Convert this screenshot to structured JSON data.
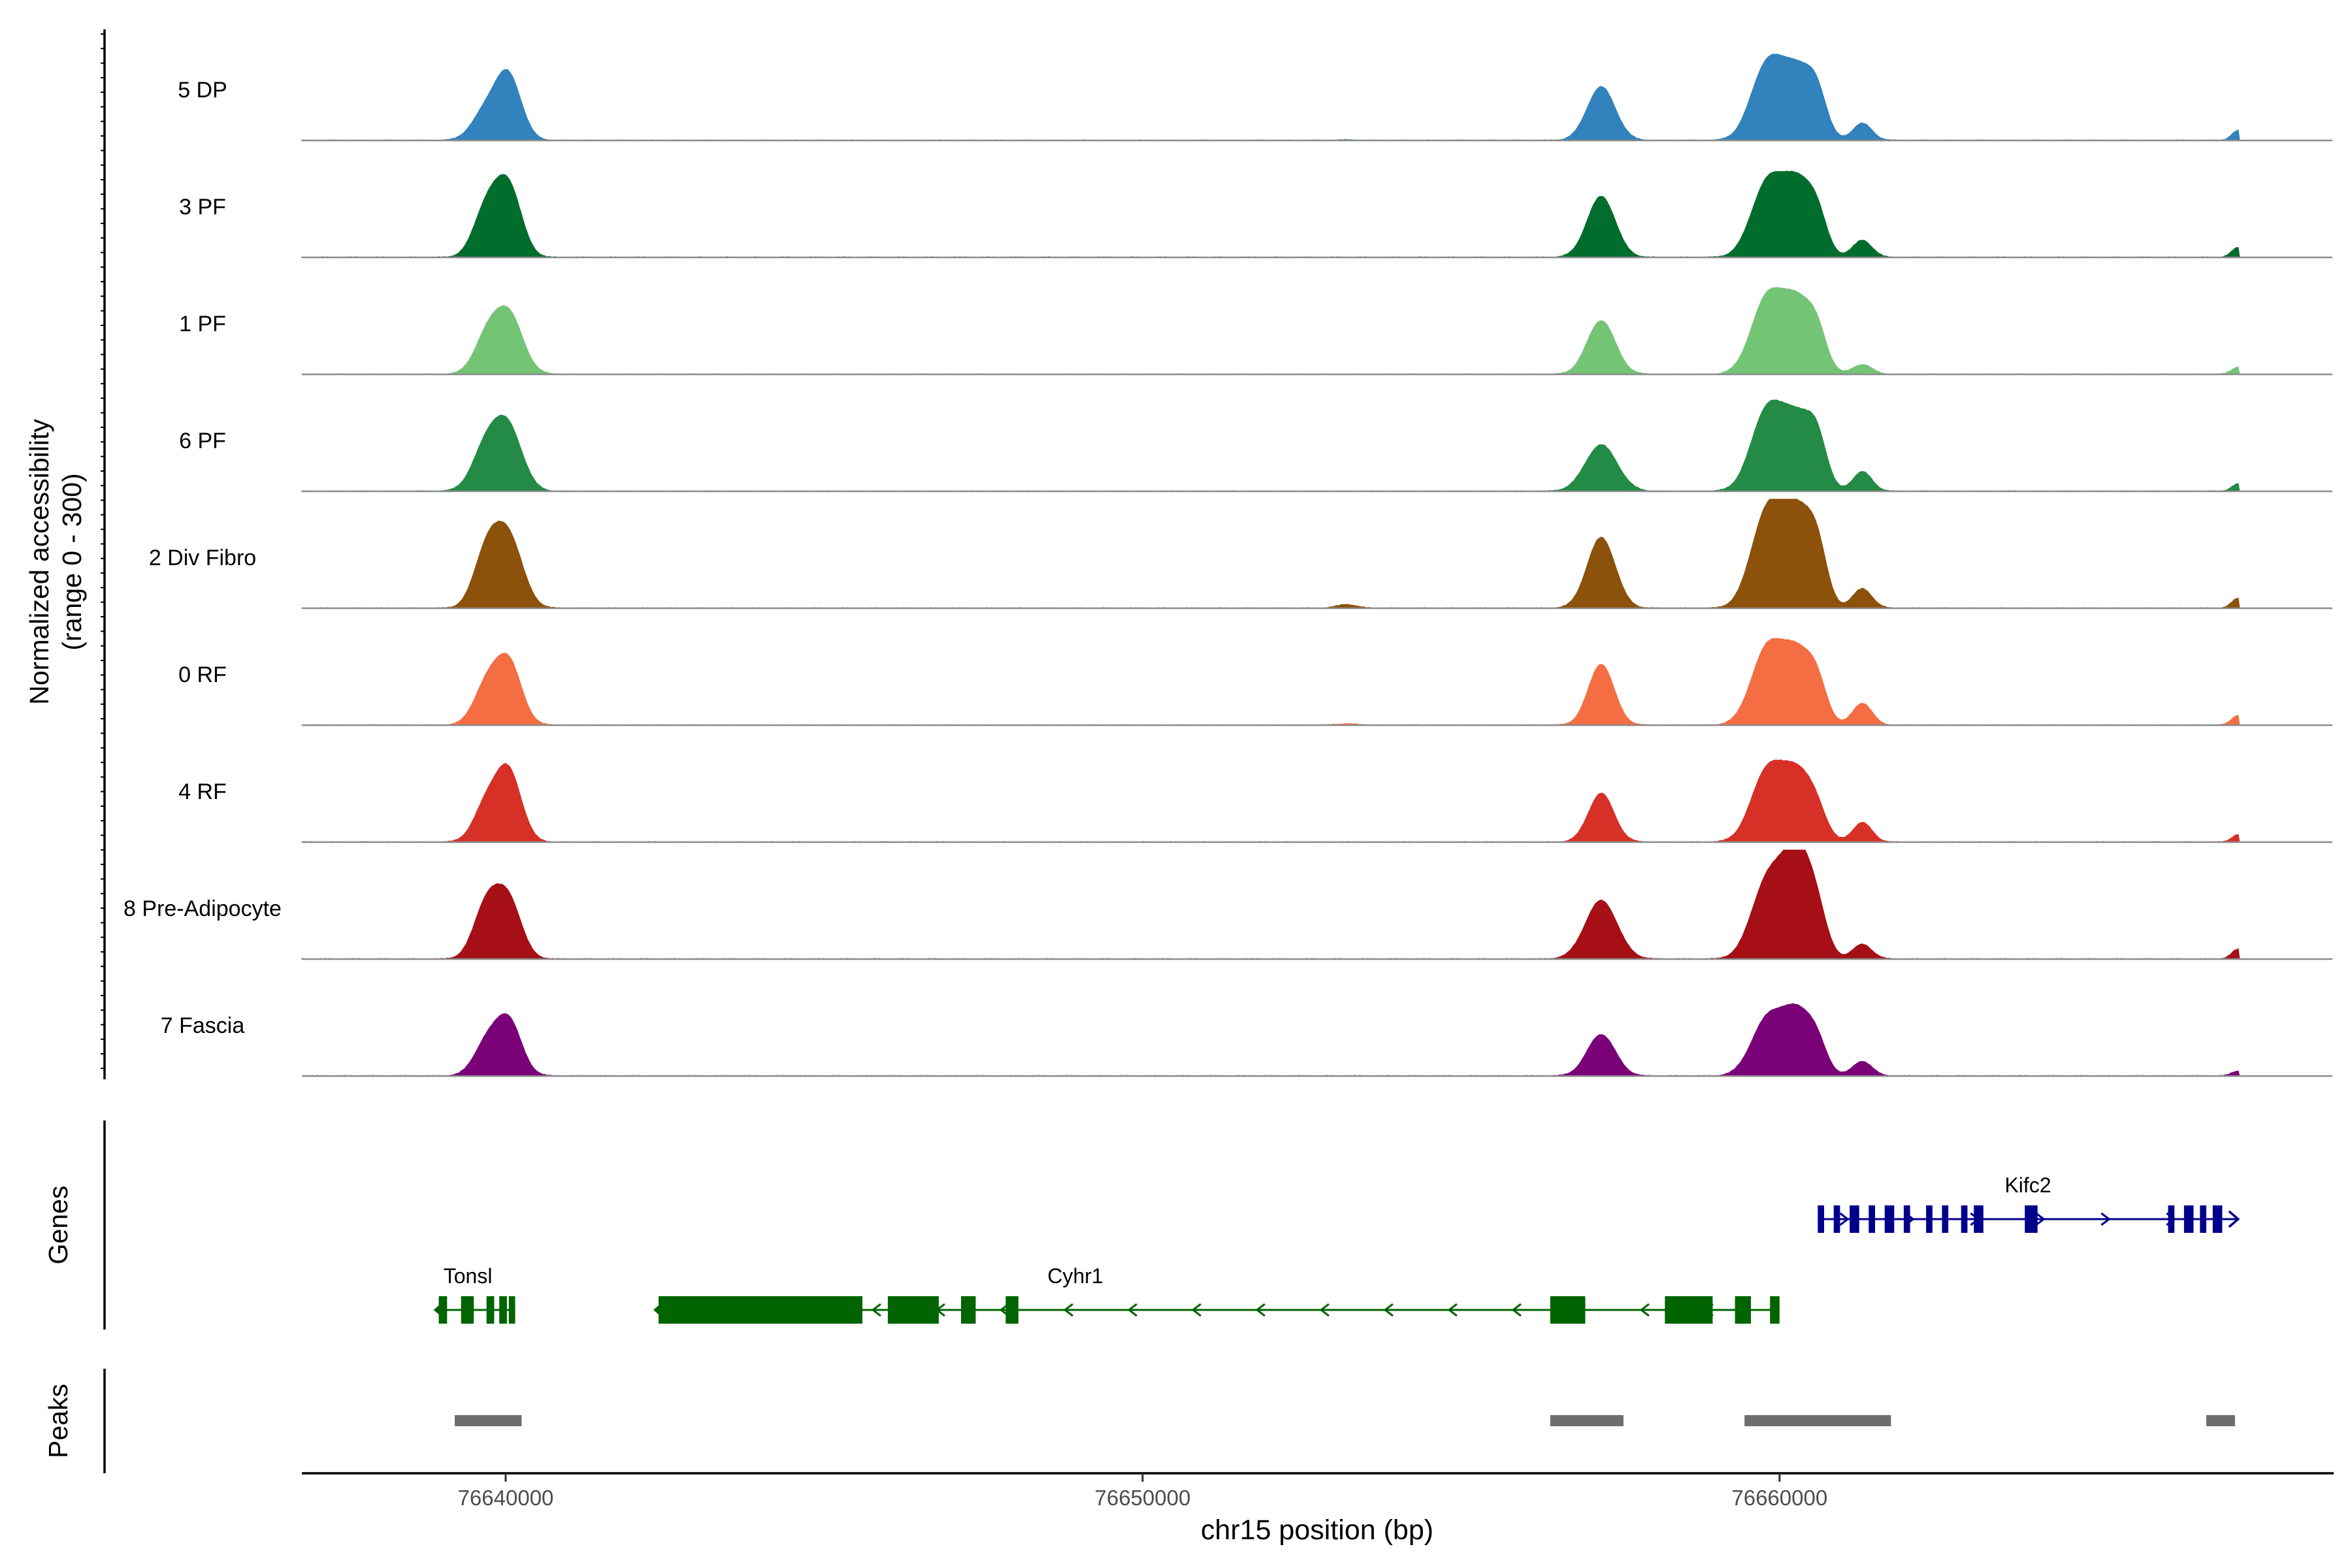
{
  "chart_data": {
    "type": "area",
    "title": "",
    "region": {
      "chrom": "chr15",
      "start": 76636800,
      "end": 76668700
    },
    "coverage": {
      "ylabel_line1": "Normalized accessibility",
      "ylabel_line2": "(range 0 - 300)",
      "ylim": [
        0,
        300
      ],
      "tracks": [
        {
          "name": "5 DP",
          "color": "#3182bd",
          "peaks": [
            [
              76639700,
              120,
              220
            ],
            [
              76640050,
              250,
              200
            ],
            [
              76653200,
              2,
              150
            ],
            [
              76657200,
              220,
              220
            ],
            [
              76659800,
              300,
              250
            ],
            [
              76660300,
              270,
              250
            ],
            [
              76660600,
              120,
              150
            ],
            [
              76661300,
              70,
              150
            ],
            [
              76667200,
              40,
              100
            ]
          ]
        },
        {
          "name": "3 PF",
          "color": "#006d2c",
          "peaks": [
            [
              76639700,
              200,
              200
            ],
            [
              76640050,
              280,
              200
            ],
            [
              76657200,
              250,
              220
            ],
            [
              76659800,
              290,
              250
            ],
            [
              76660300,
              290,
              250
            ],
            [
              76660600,
              100,
              150
            ],
            [
              76661300,
              70,
              150
            ],
            [
              76667200,
              40,
              100
            ]
          ]
        },
        {
          "name": "1 PF",
          "color": "#74c476",
          "peaks": [
            [
              76639700,
              140,
              200
            ],
            [
              76640050,
              240,
              220
            ],
            [
              76657200,
              220,
              220
            ],
            [
              76659800,
              300,
              250
            ],
            [
              76660300,
              280,
              250
            ],
            [
              76660600,
              100,
              150
            ],
            [
              76661300,
              40,
              150
            ],
            [
              76667200,
              30,
              100
            ]
          ]
        },
        {
          "name": "6 PF",
          "color": "#238b45",
          "peaks": [
            [
              76639700,
              180,
              220
            ],
            [
              76640050,
              240,
              220
            ],
            [
              76657200,
              190,
              250
            ],
            [
              76659800,
              320,
              250
            ],
            [
              76660300,
              280,
              250
            ],
            [
              76660600,
              140,
              150
            ],
            [
              76661300,
              80,
              150
            ],
            [
              76667200,
              30,
              100
            ]
          ]
        },
        {
          "name": "2 Div Fibro",
          "color": "#8c510a",
          "peaks": [
            [
              76639700,
              220,
              200
            ],
            [
              76640050,
              280,
              220
            ],
            [
              76653200,
              15,
              150
            ],
            [
              76657200,
              290,
              220
            ],
            [
              76659800,
              380,
              250
            ],
            [
              76660300,
              370,
              250
            ],
            [
              76660600,
              150,
              150
            ],
            [
              76661300,
              80,
              150
            ],
            [
              76667200,
              40,
              100
            ]
          ]
        },
        {
          "name": "0 RF",
          "color": "#f46d43",
          "peaks": [
            [
              76639700,
              160,
              200
            ],
            [
              76640050,
              250,
              200
            ],
            [
              76653200,
              5,
              150
            ],
            [
              76657200,
              250,
              200
            ],
            [
              76659800,
              300,
              250
            ],
            [
              76660300,
              280,
              250
            ],
            [
              76660600,
              100,
              150
            ],
            [
              76661300,
              90,
              150
            ],
            [
              76667200,
              40,
              100
            ]
          ]
        },
        {
          "name": "4 RF",
          "color": "#d73027",
          "peaks": [
            [
              76639700,
              150,
              200
            ],
            [
              76640050,
              280,
              200
            ],
            [
              76657200,
              200,
              200
            ],
            [
              76659800,
              280,
              250
            ],
            [
              76660300,
              270,
              250
            ],
            [
              76660600,
              60,
              150
            ],
            [
              76661300,
              80,
              150
            ],
            [
              76667200,
              30,
              100
            ]
          ]
        },
        {
          "name": "8 Pre-Adipocyte",
          "color": "#a50f15",
          "peaks": [
            [
              76639700,
              220,
              200
            ],
            [
              76640050,
              230,
              200
            ],
            [
              76657200,
              240,
              250
            ],
            [
              76659800,
              300,
              250
            ],
            [
              76660300,
              430,
              250
            ],
            [
              76660600,
              80,
              150
            ],
            [
              76661300,
              60,
              150
            ],
            [
              76667200,
              40,
              100
            ]
          ]
        },
        {
          "name": "7 Fascia",
          "color": "#7a0177",
          "peaks": [
            [
              76639700,
              130,
              200
            ],
            [
              76640050,
              220,
              200
            ],
            [
              76657200,
              170,
              220
            ],
            [
              76659800,
              220,
              250
            ],
            [
              76660300,
              250,
              250
            ],
            [
              76660600,
              70,
              150
            ],
            [
              76661300,
              60,
              150
            ],
            [
              76667200,
              20,
              100
            ]
          ]
        }
      ]
    },
    "genes": {
      "label": "Genes",
      "items": [
        {
          "name": "Tonsl",
          "strand": "-",
          "color": "#006400",
          "start": 76638950,
          "end": 76640150,
          "exons": [
            [
              76638950,
              76639080
            ],
            [
              76639300,
              76639500
            ],
            [
              76639700,
              76639820
            ],
            [
              76639900,
              76640020
            ],
            [
              76640050,
              76640150
            ]
          ]
        },
        {
          "name": "Cyhr1",
          "strand": "-",
          "color": "#006400",
          "start": 76642400,
          "end": 76660000,
          "exons": [
            [
              76642400,
              76645600
            ],
            [
              76646000,
              76646800
            ],
            [
              76647150,
              76647380
            ],
            [
              76647850,
              76648050
            ],
            [
              76656400,
              76656950
            ],
            [
              76658200,
              76658950
            ],
            [
              76659300,
              76659550
            ],
            [
              76659850,
              76660000
            ]
          ]
        },
        {
          "name": "Kifc2",
          "strand": "+",
          "color": "#00008b",
          "start": 76660600,
          "end": 76667200,
          "exons": [
            [
              76660600,
              76660700
            ],
            [
              76660850,
              76660950
            ],
            [
              76661100,
              76661250
            ],
            [
              76661400,
              76661500
            ],
            [
              76661650,
              76661800
            ],
            [
              76661950,
              76662050
            ],
            [
              76662300,
              76662400
            ],
            [
              76662550,
              76662650
            ],
            [
              76662850,
              76662950
            ],
            [
              76663050,
              76663200
            ],
            [
              76663850,
              76664050
            ],
            [
              76666100,
              76666200
            ],
            [
              76666350,
              76666500
            ],
            [
              76666600,
              76666700
            ],
            [
              76666800,
              76666950
            ]
          ]
        }
      ]
    },
    "peaks_track": {
      "label": "Peaks",
      "color": "#6e6e6e",
      "regions": [
        [
          76639200,
          76640250
        ],
        [
          76656400,
          76657550
        ],
        [
          76659450,
          76661750
        ],
        [
          76666700,
          76667150
        ]
      ]
    },
    "x_axis": {
      "xlabel": "chr15 position (bp)",
      "ticks": [
        76640000,
        76650000,
        76660000
      ],
      "tick_labels": [
        "76640000",
        "76650000",
        "76660000"
      ]
    }
  }
}
